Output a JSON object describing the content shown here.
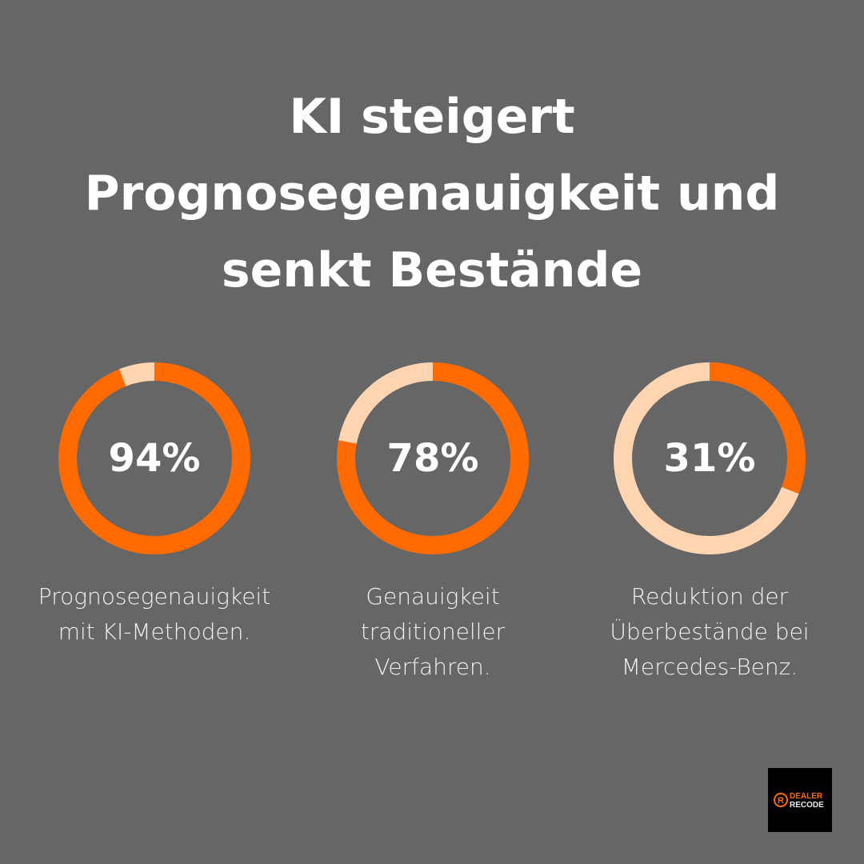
{
  "title": "KI steigert Prognosegenauigkeit und senkt Bestände",
  "colors": {
    "background": "#666666",
    "accent": "#FF6B00",
    "remainder": "#FFD4B0"
  },
  "chart_data": [
    {
      "type": "pie",
      "variant": "donut",
      "values": [
        94,
        6
      ],
      "value_label": "94%",
      "label": "Prognosegenauigkeit mit KI-Methoden."
    },
    {
      "type": "pie",
      "variant": "donut",
      "values": [
        78,
        22
      ],
      "value_label": "78%",
      "label": "Genauigkeit traditioneller Verfahren."
    },
    {
      "type": "pie",
      "variant": "donut",
      "values": [
        31,
        69
      ],
      "value_label": "31%",
      "label": "Reduktion der Überbestände bei Mercedes-Benz."
    }
  ],
  "logo": {
    "text_line1": "DEALER",
    "text_line2": "RECODE"
  }
}
